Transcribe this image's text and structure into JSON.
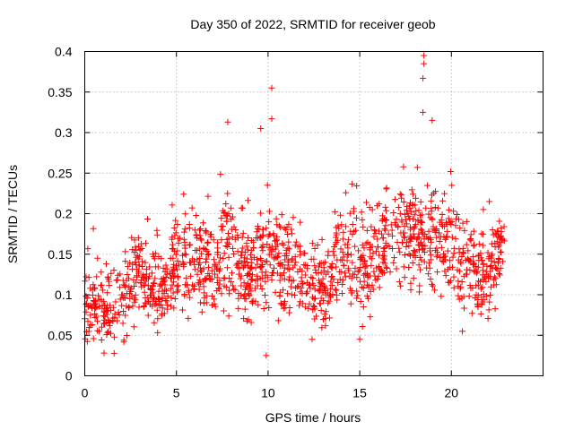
{
  "chart_data": {
    "type": "scatter",
    "title": "Day 350 of 2022, SRMTID for receiver geob",
    "xlabel": "GPS time / hours",
    "ylabel": "SRMTID / TECUs",
    "xlim": [
      0,
      25
    ],
    "ylim": [
      0,
      0.4
    ],
    "x_ticks": [
      0,
      5,
      10,
      15,
      20
    ],
    "x_tick_labels": [
      "0",
      "5",
      "10",
      "15",
      "20"
    ],
    "y_ticks": [
      0,
      0.05,
      0.1,
      0.15,
      0.2,
      0.25,
      0.3,
      0.35,
      0.4
    ],
    "y_tick_labels": [
      "0",
      "0.05",
      "0.1",
      "0.15",
      "0.2",
      "0.25",
      "0.3",
      "0.35",
      "0.4"
    ],
    "grid": true,
    "marker": "+",
    "marker_color": "#ff0000",
    "x_data_range": [
      0,
      22.9
    ],
    "trend": {
      "x": [
        0,
        1,
        2,
        3,
        4,
        5,
        6,
        7,
        8,
        9,
        10,
        11,
        12,
        13,
        14,
        15,
        16,
        17,
        18,
        19,
        20,
        21,
        22,
        22.9
      ],
      "y": [
        0.085,
        0.08,
        0.09,
        0.13,
        0.1,
        0.14,
        0.13,
        0.135,
        0.17,
        0.12,
        0.16,
        0.135,
        0.125,
        0.1,
        0.15,
        0.13,
        0.16,
        0.18,
        0.175,
        0.17,
        0.155,
        0.13,
        0.12,
        0.15
      ]
    },
    "notable_points": [
      {
        "x": 18.5,
        "y": 0.395
      },
      {
        "x": 18.5,
        "y": 0.385
      },
      {
        "x": 18.45,
        "y": 0.367
      },
      {
        "x": 10.2,
        "y": 0.355
      },
      {
        "x": 18.45,
        "y": 0.325
      },
      {
        "x": 10.2,
        "y": 0.317
      },
      {
        "x": 18.95,
        "y": 0.315
      },
      {
        "x": 7.8,
        "y": 0.313
      },
      {
        "x": 9.6,
        "y": 0.305
      },
      {
        "x": 9.9,
        "y": 0.025
      },
      {
        "x": 1.05,
        "y": 0.028
      },
      {
        "x": 12.4,
        "y": 0.045
      },
      {
        "x": 20.6,
        "y": 0.055
      },
      {
        "x": 15.0,
        "y": 0.045
      }
    ]
  }
}
